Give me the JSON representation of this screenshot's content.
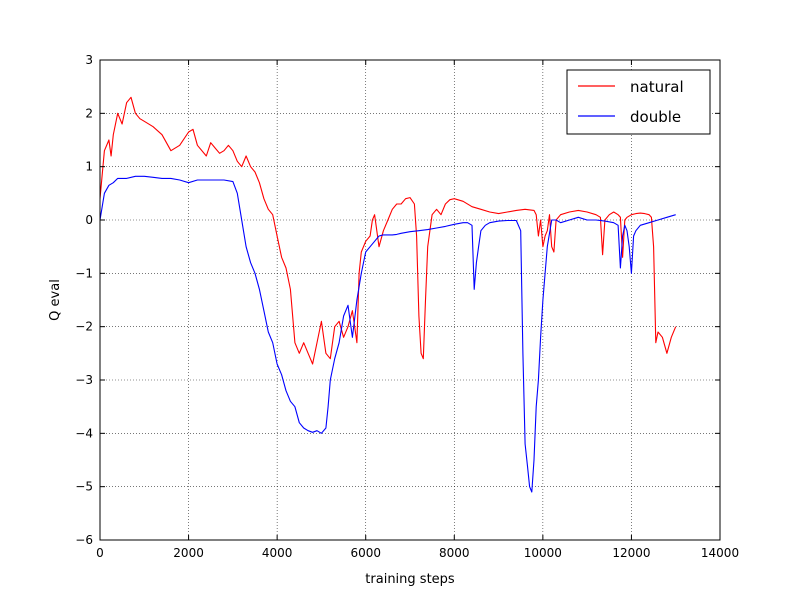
{
  "chart_data": {
    "type": "line",
    "title": "",
    "xlabel": "training steps",
    "ylabel": "Q eval",
    "xlim": [
      0,
      14000
    ],
    "ylim": [
      -6,
      3
    ],
    "x_ticks": [
      0,
      2000,
      4000,
      6000,
      8000,
      10000,
      12000,
      14000
    ],
    "y_ticks": [
      -6,
      -5,
      -4,
      -3,
      -2,
      -1,
      0,
      1,
      2,
      3
    ],
    "grid": true,
    "legend_position": "top-right",
    "series": [
      {
        "name": "natural",
        "color": "#ff0000",
        "x": [
          0,
          100,
          200,
          250,
          300,
          400,
          500,
          600,
          700,
          800,
          900,
          1000,
          1200,
          1400,
          1600,
          1800,
          2000,
          2100,
          2200,
          2400,
          2500,
          2600,
          2700,
          2800,
          2900,
          3000,
          3100,
          3200,
          3300,
          3400,
          3500,
          3600,
          3700,
          3800,
          3900,
          4000,
          4100,
          4200,
          4300,
          4400,
          4500,
          4600,
          4700,
          4800,
          4900,
          5000,
          5100,
          5200,
          5300,
          5400,
          5500,
          5600,
          5700,
          5800,
          5850,
          5900,
          6000,
          6100,
          6150,
          6200,
          6300,
          6400,
          6500,
          6600,
          6700,
          6800,
          6900,
          7000,
          7100,
          7150,
          7200,
          7250,
          7300,
          7350,
          7400,
          7500,
          7600,
          7700,
          7800,
          7900,
          8000,
          8200,
          8400,
          8600,
          8800,
          9000,
          9200,
          9400,
          9600,
          9800,
          9850,
          9900,
          9950,
          10000,
          10050,
          10100,
          10150,
          10200,
          10250,
          10300,
          10400,
          10600,
          10800,
          11000,
          11200,
          11300,
          11350,
          11400,
          11500,
          11600,
          11700,
          11750,
          11800,
          11850,
          11900,
          12000,
          12100,
          12200,
          12300,
          12400,
          12450,
          12500,
          12550,
          12600,
          12700,
          12800,
          12900,
          13000
        ],
        "values": [
          0.4,
          1.3,
          1.5,
          1.2,
          1.6,
          2.0,
          1.8,
          2.2,
          2.3,
          2.0,
          1.9,
          1.85,
          1.75,
          1.6,
          1.3,
          1.4,
          1.65,
          1.7,
          1.4,
          1.2,
          1.45,
          1.35,
          1.25,
          1.3,
          1.4,
          1.3,
          1.1,
          1.0,
          1.2,
          1.0,
          0.9,
          0.7,
          0.4,
          0.2,
          0.1,
          -0.3,
          -0.7,
          -0.9,
          -1.3,
          -2.3,
          -2.5,
          -2.3,
          -2.5,
          -2.7,
          -2.3,
          -1.9,
          -2.5,
          -2.6,
          -2.0,
          -1.9,
          -2.2,
          -2.0,
          -1.7,
          -2.3,
          -1.0,
          -0.6,
          -0.4,
          -0.3,
          0.0,
          0.1,
          -0.5,
          -0.2,
          0.0,
          0.2,
          0.3,
          0.3,
          0.4,
          0.42,
          0.3,
          -0.3,
          -1.8,
          -2.5,
          -2.6,
          -1.5,
          -0.5,
          0.1,
          0.2,
          0.1,
          0.3,
          0.38,
          0.4,
          0.35,
          0.25,
          0.2,
          0.15,
          0.12,
          0.15,
          0.18,
          0.2,
          0.18,
          0.1,
          -0.3,
          0.0,
          -0.5,
          -0.3,
          -0.2,
          0.1,
          -0.5,
          -0.6,
          0.0,
          0.1,
          0.15,
          0.18,
          0.15,
          0.1,
          0.05,
          -0.65,
          0.0,
          0.1,
          0.15,
          0.1,
          0.05,
          -0.7,
          0.0,
          0.05,
          0.1,
          0.12,
          0.13,
          0.12,
          0.1,
          0.05,
          -0.5,
          -2.3,
          -2.1,
          -2.2,
          -2.5,
          -2.2,
          -2.0
        ]
      },
      {
        "name": "double",
        "color": "#0000ff",
        "x": [
          0,
          100,
          200,
          300,
          400,
          600,
          800,
          1000,
          1200,
          1400,
          1600,
          1800,
          2000,
          2200,
          2400,
          2600,
          2800,
          3000,
          3100,
          3200,
          3300,
          3400,
          3500,
          3600,
          3700,
          3800,
          3900,
          4000,
          4100,
          4200,
          4300,
          4400,
          4500,
          4600,
          4700,
          4800,
          4900,
          5000,
          5100,
          5150,
          5200,
          5250,
          5300,
          5400,
          5500,
          5600,
          5700,
          5800,
          5900,
          6000,
          6100,
          6200,
          6300,
          6400,
          6500,
          6600,
          6700,
          6800,
          7000,
          7200,
          7400,
          7600,
          7800,
          8000,
          8200,
          8300,
          8400,
          8450,
          8500,
          8550,
          8600,
          8700,
          8800,
          9000,
          9200,
          9300,
          9400,
          9500,
          9550,
          9600,
          9650,
          9700,
          9750,
          9800,
          9850,
          9900,
          9950,
          10000,
          10100,
          10200,
          10300,
          10400,
          10600,
          10800,
          11000,
          11200,
          11400,
          11600,
          11700,
          11750,
          11800,
          11850,
          11900,
          11950,
          12000,
          12050,
          12100,
          12200,
          12400,
          12600,
          12800,
          13000
        ],
        "values": [
          0.0,
          0.5,
          0.65,
          0.7,
          0.78,
          0.78,
          0.82,
          0.82,
          0.8,
          0.78,
          0.78,
          0.75,
          0.7,
          0.75,
          0.75,
          0.75,
          0.75,
          0.72,
          0.5,
          0.0,
          -0.5,
          -0.8,
          -1.0,
          -1.3,
          -1.7,
          -2.1,
          -2.3,
          -2.7,
          -2.9,
          -3.2,
          -3.4,
          -3.5,
          -3.8,
          -3.9,
          -3.95,
          -3.98,
          -3.95,
          -4.0,
          -3.9,
          -3.5,
          -3.0,
          -2.8,
          -2.6,
          -2.3,
          -1.8,
          -1.6,
          -2.2,
          -1.5,
          -1.0,
          -0.6,
          -0.5,
          -0.4,
          -0.3,
          -0.28,
          -0.28,
          -0.28,
          -0.27,
          -0.25,
          -0.22,
          -0.2,
          -0.18,
          -0.15,
          -0.12,
          -0.08,
          -0.05,
          -0.05,
          -0.1,
          -1.3,
          -0.8,
          -0.5,
          -0.2,
          -0.1,
          -0.05,
          -0.02,
          -0.01,
          -0.01,
          -0.01,
          -0.2,
          -2.5,
          -4.2,
          -4.6,
          -5.0,
          -5.1,
          -4.5,
          -3.5,
          -3.0,
          -2.2,
          -1.5,
          -0.5,
          0.0,
          0.0,
          -0.05,
          0.0,
          0.05,
          0.0,
          0.0,
          -0.02,
          -0.05,
          -0.1,
          -0.9,
          -0.3,
          -0.1,
          -0.2,
          -0.5,
          -1.0,
          -0.3,
          -0.2,
          -0.1,
          -0.05,
          0.0,
          0.05,
          0.1
        ]
      }
    ]
  }
}
